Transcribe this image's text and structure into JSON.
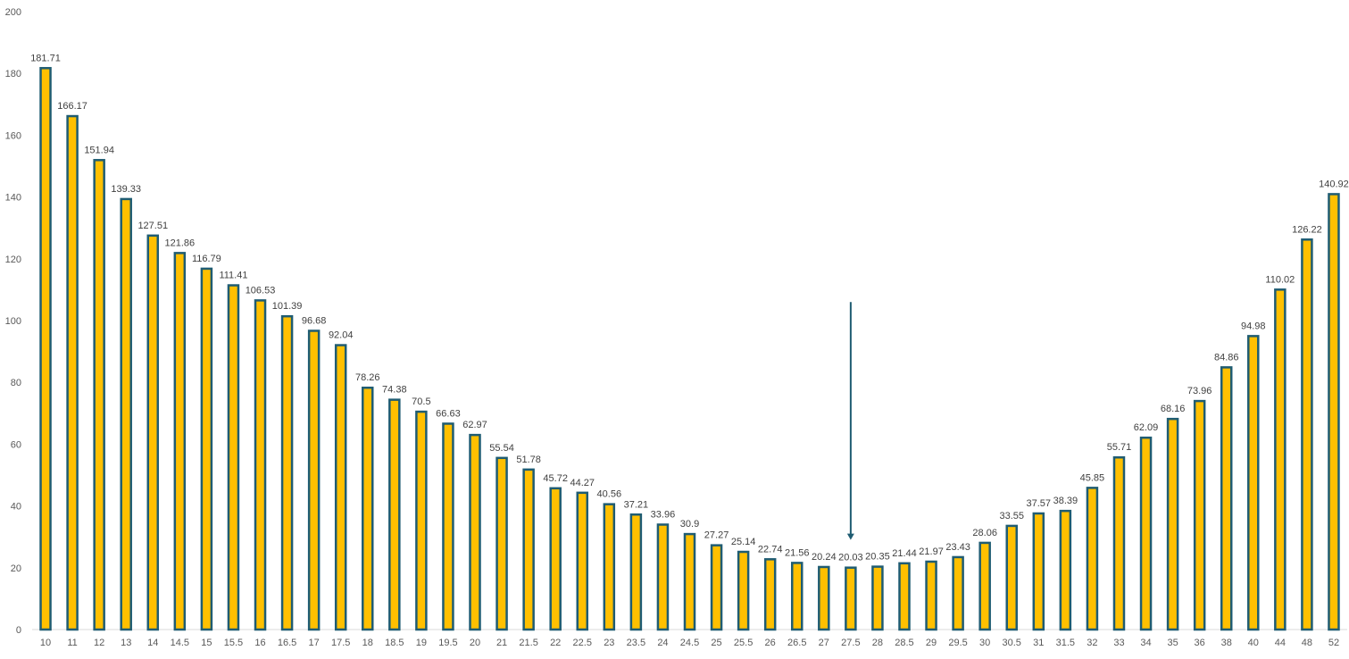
{
  "chart_data": {
    "type": "bar",
    "title": "",
    "xlabel": "",
    "ylabel": "",
    "ylim": [
      0,
      200
    ],
    "yticks": [
      0,
      20,
      40,
      60,
      80,
      100,
      120,
      140,
      160,
      180,
      200
    ],
    "grid": false,
    "legend": "none",
    "categories": [
      "10",
      "11",
      "12",
      "13",
      "14",
      "14.5",
      "15",
      "15.5",
      "16",
      "16.5",
      "17",
      "17.5",
      "18",
      "18.5",
      "19",
      "19.5",
      "20",
      "21",
      "21.5",
      "22",
      "22.5",
      "23",
      "23.5",
      "24",
      "24.5",
      "25",
      "25.5",
      "26",
      "26.5",
      "27",
      "27.5",
      "28",
      "28.5",
      "29",
      "29.5",
      "30",
      "30.5",
      "31",
      "31.5",
      "32",
      "33",
      "34",
      "35",
      "36",
      "38",
      "40",
      "44",
      "48",
      "52"
    ],
    "values": [
      181.71,
      166.17,
      151.94,
      139.33,
      127.51,
      121.86,
      116.79,
      111.41,
      106.53,
      101.39,
      96.68,
      92.04,
      78.26,
      74.38,
      70.5,
      66.63,
      62.97,
      55.54,
      51.78,
      45.72,
      44.27,
      40.56,
      37.21,
      33.96,
      30.9,
      27.27,
      25.14,
      22.74,
      21.56,
      20.24,
      20.03,
      20.35,
      21.44,
      21.97,
      23.43,
      28.06,
      33.55,
      37.57,
      38.39,
      45.85,
      55.71,
      62.09,
      68.16,
      73.96,
      84.86,
      94.98,
      110.02,
      126.22,
      140.92
    ],
    "value_labels": [
      "181.71",
      "166.17",
      "151.94",
      "139.33",
      "127.51",
      "121.86",
      "116.79",
      "111.41",
      "106.53",
      "101.39",
      "96.68",
      "92.04",
      "78.26",
      "74.38",
      "70.5",
      "66.63",
      "62.97",
      "55.54",
      "51.78",
      "45.72",
      "44.27",
      "40.56",
      "37.21",
      "33.96",
      "30.9",
      "27.27",
      "25.14",
      "22.74",
      "21.56",
      "20.24",
      "20.03",
      "20.35",
      "21.44",
      "21.97",
      "23.43",
      "28.06",
      "33.55",
      "37.57",
      "38.39",
      "45.85",
      "55.71",
      "62.09",
      "68.16",
      "73.96",
      "84.86",
      "94.98",
      "110.02",
      "126.22",
      "140.92"
    ],
    "annotations": [
      {
        "type": "arrow",
        "points_to": "27.5",
        "from_y": 106,
        "to_y": 29
      }
    ],
    "colors": {
      "bar_fill": "#FFC000",
      "bar_stroke": "#1F5C72",
      "arrow": "#1F5C72",
      "tick_text": "#595959",
      "label_text": "#404040",
      "axis_line": "#D9D9D9"
    }
  }
}
